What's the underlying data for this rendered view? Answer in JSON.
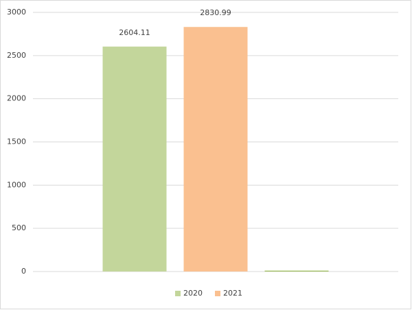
{
  "chart_data": {
    "type": "bar",
    "categories": [
      null
    ],
    "series": [
      {
        "name": "2020",
        "color": "#c3d69b",
        "values": [
          2604.11
        ],
        "show_labels": true
      },
      {
        "name": "2021",
        "color": "#fac090",
        "values": [
          2830.99
        ],
        "show_labels": true
      },
      {
        "color": "#9bbb59",
        "values": [
          10
        ],
        "show_labels": false
      }
    ],
    "ylim": [
      0,
      3000
    ],
    "yticks": [
      0,
      500,
      1000,
      1500,
      2000,
      2500,
      3000
    ],
    "grid": true,
    "legend": "bottom"
  }
}
